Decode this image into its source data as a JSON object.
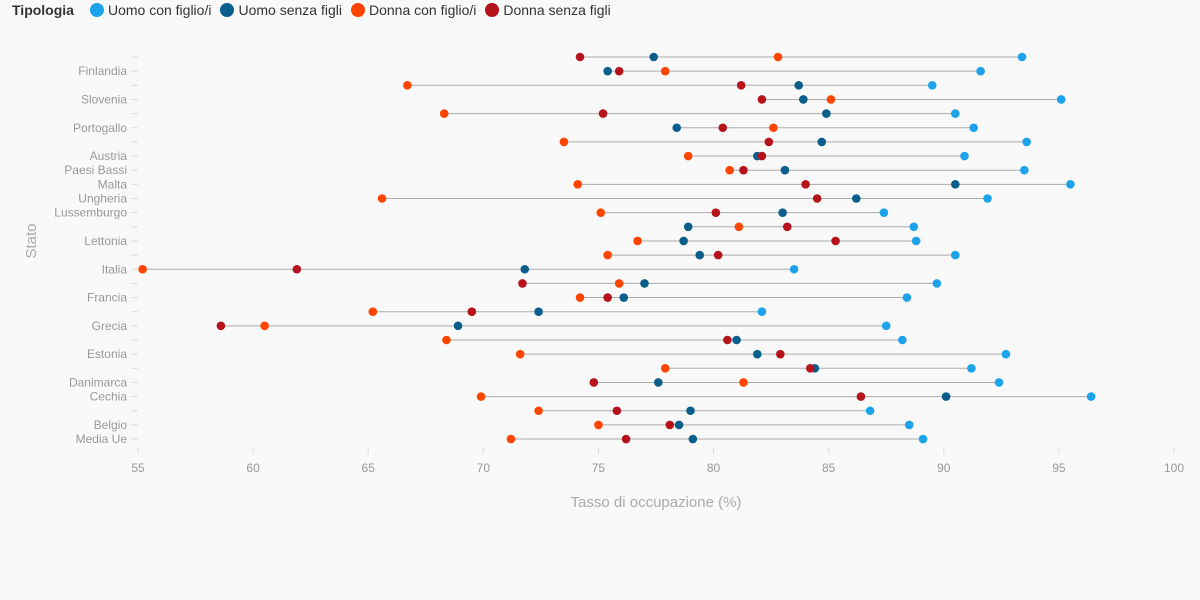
{
  "chart_data": {
    "type": "scatter",
    "legend": {
      "title": "Tipologia",
      "position": "top-left",
      "series": [
        {
          "name": "Uomo con figlio/i",
          "color": "#1ca3ec"
        },
        {
          "name": "Uomo senza figli",
          "color": "#0a5e8c"
        },
        {
          "name": "Donna con figlio/i",
          "color": "#ff4500"
        },
        {
          "name": "Donna senza figli",
          "color": "#b5121b"
        }
      ]
    },
    "xlabel": "Tasso di occupazione (%)",
    "ylabel": "Stato",
    "xlim": [
      55,
      100
    ],
    "xticks": [
      55,
      60,
      65,
      70,
      75,
      80,
      85,
      90,
      95,
      100
    ],
    "grid": false,
    "row_labels": [
      "",
      "Finlandia",
      "",
      "Slovenia",
      "",
      "Portogallo",
      "",
      "Austria",
      "Paesi Bassi",
      "Malta",
      "Ungheria",
      "Lussemburgo",
      "",
      "Lettonia",
      "",
      "Italia",
      "",
      "Francia",
      "",
      "Grecia",
      "",
      "Estonia",
      "",
      "Danimarca",
      "Cechia",
      "",
      "Belgio",
      "Media Ue"
    ],
    "rows": [
      [
        93.4,
        77.4,
        82.8,
        74.2
      ],
      [
        91.6,
        75.4,
        77.9,
        75.9
      ],
      [
        89.5,
        83.7,
        66.7,
        81.2
      ],
      [
        95.1,
        83.9,
        85.1,
        82.1
      ],
      [
        90.5,
        84.9,
        68.3,
        75.2
      ],
      [
        91.3,
        78.4,
        82.6,
        80.4
      ],
      [
        93.6,
        84.7,
        73.5,
        82.4
      ],
      [
        90.9,
        81.9,
        78.9,
        82.1
      ],
      [
        93.5,
        83.1,
        80.7,
        81.3
      ],
      [
        95.5,
        90.5,
        74.1,
        84.0
      ],
      [
        91.9,
        86.2,
        65.6,
        84.5
      ],
      [
        87.4,
        83.0,
        75.1,
        80.1
      ],
      [
        88.7,
        78.9,
        81.1,
        83.2
      ],
      [
        88.8,
        78.7,
        76.7,
        85.3
      ],
      [
        90.5,
        79.4,
        75.4,
        80.2
      ],
      [
        83.5,
        71.8,
        55.2,
        61.9
      ],
      [
        89.7,
        77.0,
        75.9,
        71.7
      ],
      [
        88.4,
        76.1,
        74.2,
        75.4
      ],
      [
        82.1,
        72.4,
        65.2,
        69.5
      ],
      [
        87.5,
        68.9,
        60.5,
        58.6
      ],
      [
        88.2,
        81.0,
        68.4,
        80.6
      ],
      [
        92.7,
        81.9,
        71.6,
        82.9
      ],
      [
        91.2,
        84.4,
        77.9,
        84.2
      ],
      [
        92.4,
        77.6,
        81.3,
        74.8
      ],
      [
        96.4,
        90.1,
        69.9,
        86.4
      ],
      [
        86.8,
        79.0,
        72.4,
        75.8
      ],
      [
        88.5,
        78.5,
        75.0,
        78.1
      ],
      [
        89.1,
        79.1,
        71.2,
        76.2
      ]
    ]
  }
}
